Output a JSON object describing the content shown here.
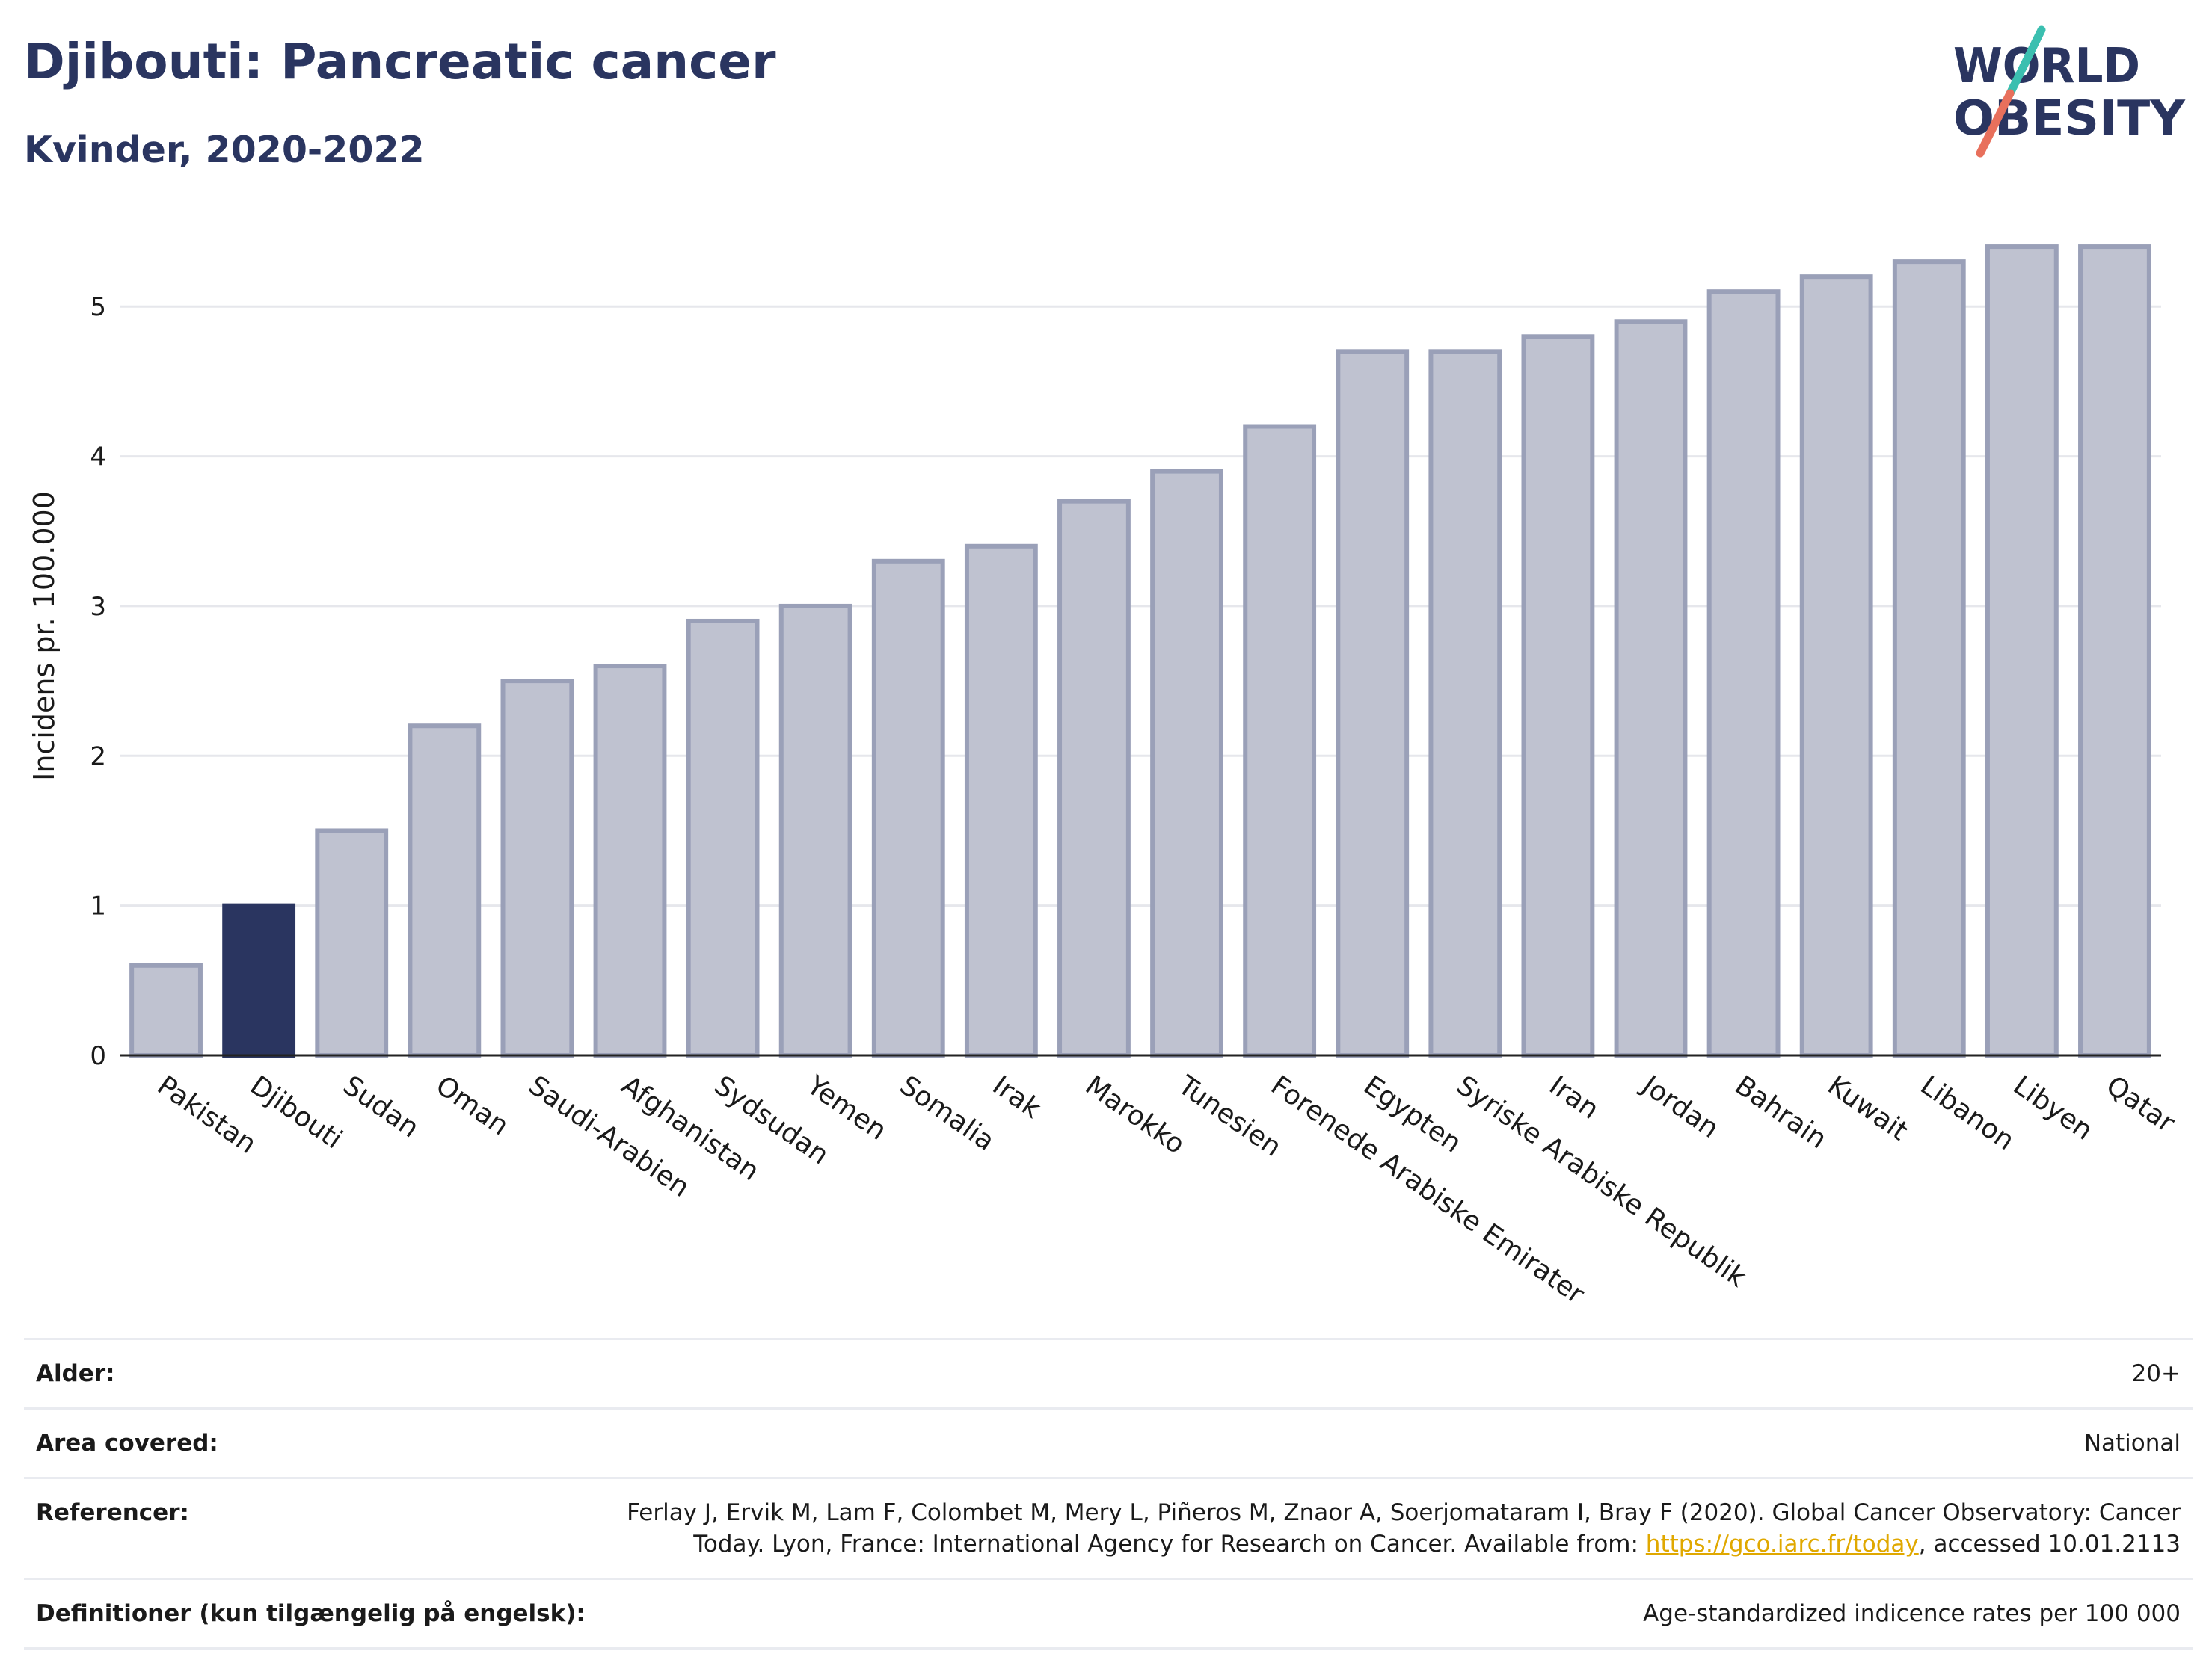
{
  "header": {
    "title": "Djibouti: Pancreatic cancer",
    "subtitle": "Kvinder, 2020-2022"
  },
  "logo": {
    "line1": "WORLD",
    "line2": "OBESITY",
    "icon": "world-obesity-logo",
    "colors": {
      "text": "#2a3560",
      "slash_top": "#3bbfb0",
      "slash_bottom": "#e8705c"
    }
  },
  "chart_data": {
    "type": "bar",
    "ylabel": "Incidens pr. 100.000",
    "ylim": [
      0,
      5.6
    ],
    "yticks": [
      0,
      1,
      2,
      3,
      4,
      5
    ],
    "grid": true,
    "highlight": "Djibouti",
    "colors": {
      "bar": "#bfc2d0",
      "bar_edge": "#9aa0b8",
      "highlight": "#2a3560"
    },
    "categories": [
      "Pakistan",
      "Djibouti",
      "Sudan",
      "Oman",
      "Saudi-Arabien",
      "Afghanistan",
      "Sydsudan",
      "Yemen",
      "Somalia",
      "Irak",
      "Marokko",
      "Tunesien",
      "Forenede Arabiske Emirater",
      "Egypten",
      "Syriske Arabiske Republik",
      "Iran",
      "Jordan",
      "Bahrain",
      "Kuwait",
      "Libanon",
      "Libyen",
      "Qatar"
    ],
    "values": [
      0.6,
      1.0,
      1.5,
      2.2,
      2.5,
      2.6,
      2.9,
      3.0,
      3.3,
      3.4,
      3.7,
      3.9,
      4.2,
      4.7,
      4.7,
      4.8,
      4.9,
      5.1,
      5.2,
      5.3,
      5.4,
      5.4
    ]
  },
  "meta": [
    {
      "label": "Alder:",
      "value": "20+"
    },
    {
      "label": "Area covered:",
      "value": "National"
    },
    {
      "label": "Referencer:",
      "value": "Ferlay J, Ervik M, Lam F, Colombet M, Mery L, Piñeros M, Znaor A, Soerjomataram I, Bray F (2020). Global Cancer Observatory: Cancer Today. Lyon, France: International Agency for Research on Cancer. Available from: ",
      "link": "https://gco.iarc.fr/today",
      "value_after": ", accessed 10.01.2113"
    },
    {
      "label": "Definitioner (kun tilgængelig på engelsk):",
      "value": "Age-standardized indicence rates per 100 000"
    }
  ]
}
